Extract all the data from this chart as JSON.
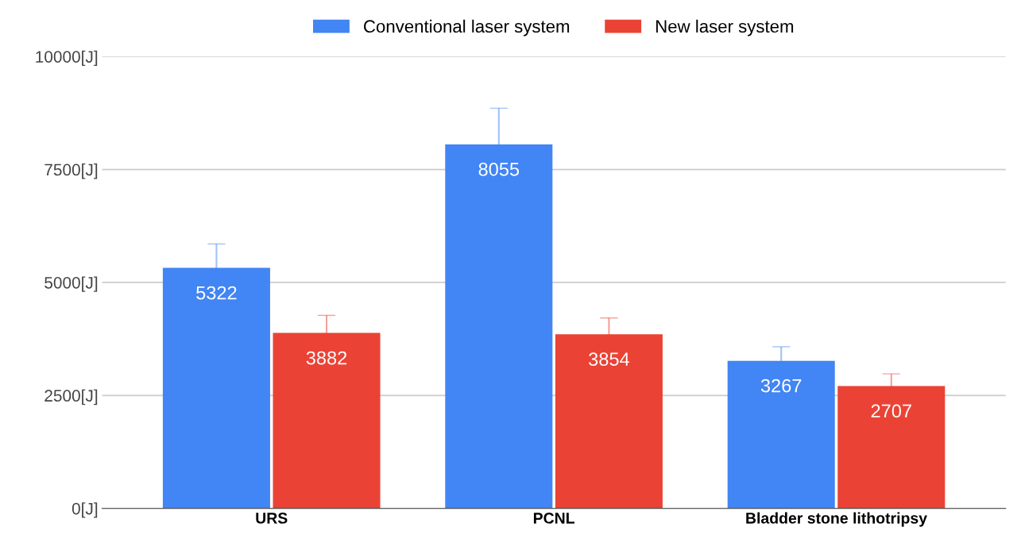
{
  "chart_data": {
    "type": "bar",
    "categories": [
      "URS",
      "PCNL",
      "Bladder stone lithotripsy"
    ],
    "series": [
      {
        "name": "Conventional laser system",
        "color": "#4285f4",
        "values": [
          5322,
          8055,
          3267
        ],
        "errors": [
          530,
          800,
          310
        ]
      },
      {
        "name": "New laser system",
        "color": "#ea4335",
        "values": [
          3882,
          3854,
          2707
        ],
        "errors": [
          390,
          360,
          270
        ]
      }
    ],
    "ylim": [
      0,
      10000
    ],
    "yticks": [
      {
        "value": 0,
        "label": "0[J]"
      },
      {
        "value": 2500,
        "label": "2500[J]"
      },
      {
        "value": 5000,
        "label": "5000[J]"
      },
      {
        "value": 7500,
        "label": "7500[J]"
      },
      {
        "value": 10000,
        "label": "10000[J]"
      }
    ],
    "grid": "y",
    "legend": "top",
    "data_labels": true
  }
}
